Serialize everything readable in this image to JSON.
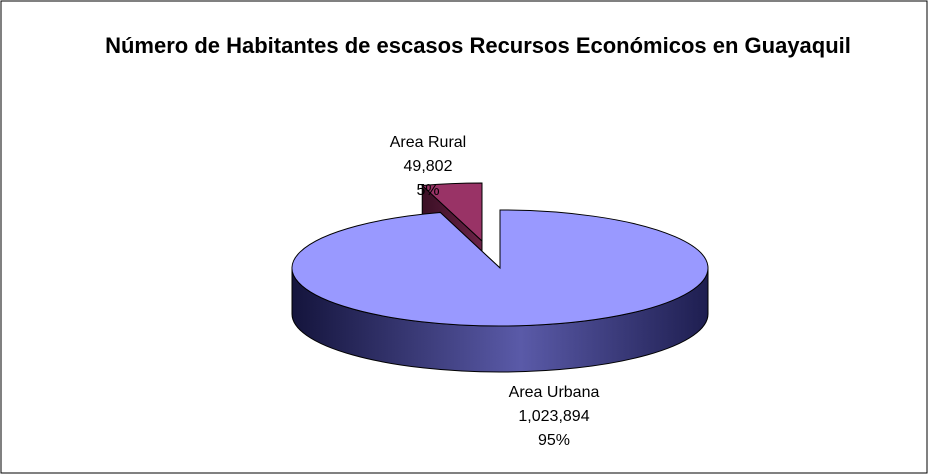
{
  "chart_data": {
    "type": "pie",
    "title": "Número de Habitantes de escasos Recursos Económicos en Guayaquil",
    "categories": [
      "Area Urbana",
      "Area Rural"
    ],
    "values": [
      1023894,
      49802
    ],
    "value_labels": [
      "1,023,894",
      "49,802"
    ],
    "percents": [
      95,
      5
    ],
    "percent_labels": [
      "95%",
      "5%"
    ],
    "colors": [
      "#9999ff",
      "#993366"
    ],
    "three_d": true
  }
}
